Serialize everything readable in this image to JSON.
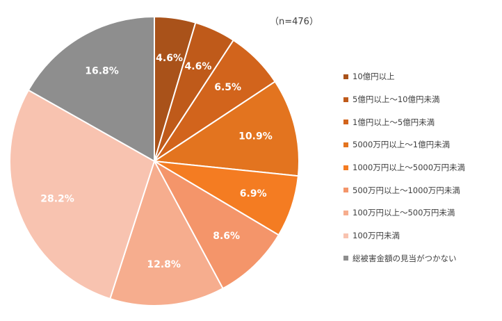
{
  "chart_data": {
    "type": "pie",
    "note": "（n=476）",
    "categories": [
      "10億円以上",
      "5億円以上～10億円未満",
      "1億円以上～5億円未満",
      "5000万円以上～1億円未満",
      "1000万円以上～5000万円未満",
      "500万円以上～1000万円未満",
      "100万円以上～500万円未満",
      "100万円未満",
      "総被害金額の見当がつかない"
    ],
    "values": [
      4.6,
      4.6,
      6.5,
      10.9,
      6.9,
      8.6,
      12.8,
      28.2,
      16.8
    ],
    "labels": [
      "4.6%",
      "4.6%",
      "6.5%",
      "10.9%",
      "6.9%",
      "8.6%",
      "12.8%",
      "28.2%",
      "16.8%"
    ],
    "colors": [
      "#A9521A",
      "#BF5A1A",
      "#D2641C",
      "#E3741F",
      "#F47C22",
      "#F4956A",
      "#F6AD8E",
      "#F8C3B0",
      "#8E8E8E"
    ],
    "legend_position": "right"
  }
}
